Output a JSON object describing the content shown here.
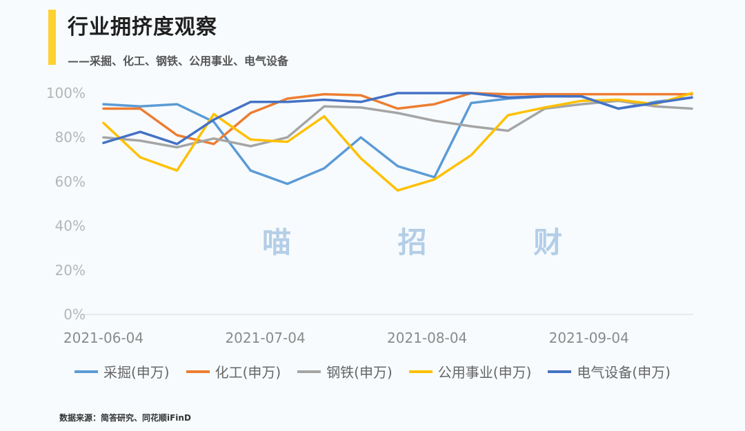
{
  "header": {
    "title": "行业拥挤度观察",
    "subtitle": "——采掘、化工、钢铁、公用事业、电气设备"
  },
  "watermark": "喵 招 财",
  "source": "数据来源：简答研究、同花顺iFinD",
  "chart_data": {
    "type": "line",
    "title": "",
    "xlabel": "",
    "ylabel": "",
    "ylim": [
      0,
      100
    ],
    "y_ticks": [
      "0%",
      "20%",
      "40%",
      "60%",
      "80%",
      "100%"
    ],
    "x_tick_labels": [
      "2021-06-04",
      "2021-07-04",
      "2021-08-04",
      "2021-09-04"
    ],
    "x_tick_index": [
      0,
      4.4,
      8.8,
      13.2
    ],
    "n_points": 17,
    "grid": false,
    "legend_position": "bottom",
    "series": [
      {
        "name": "采掘(申万)",
        "color": "#5b9bd5",
        "values": [
          95,
          94,
          95,
          87,
          65,
          59,
          66,
          80,
          67,
          62,
          95.5,
          97.5,
          98.5,
          98.5,
          93,
          96,
          98
        ]
      },
      {
        "name": "化工(申万)",
        "color": "#ed7d31",
        "values": [
          93,
          93,
          81,
          77,
          91,
          97.5,
          99.5,
          99,
          93,
          95,
          100,
          99.5,
          99.5,
          99.5,
          99.5,
          99.5,
          99.5
        ]
      },
      {
        "name": "钢铁(申万)",
        "color": "#a5a5a5",
        "values": [
          80,
          78.5,
          75.5,
          79.5,
          76,
          80,
          94,
          93.5,
          91,
          87.5,
          85,
          83,
          93,
          95,
          96.5,
          94,
          93
        ]
      },
      {
        "name": "公用事业(申万)",
        "color": "#ffc000",
        "values": [
          86.5,
          71,
          65,
          90.5,
          79,
          78,
          89.5,
          70.5,
          56,
          61,
          72,
          90,
          93.5,
          96.5,
          97,
          95,
          100
        ]
      },
      {
        "name": "电气设备(申万)",
        "color": "#4472c4",
        "values": [
          77.5,
          82.5,
          77,
          88,
          96,
          96,
          97,
          96,
          100,
          100,
          100,
          98,
          98.5,
          98.5,
          93,
          95.5,
          98
        ]
      }
    ]
  }
}
